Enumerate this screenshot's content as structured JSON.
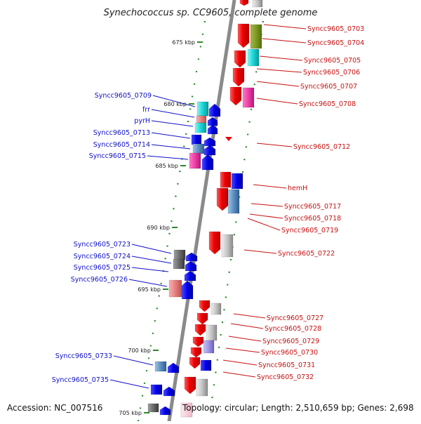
{
  "title": "Synechococcus sp. CC9605, complete genome",
  "footer": {
    "accession": "Accession: NC_007516",
    "summary": "Topology: circular; Length: 2,510,659 bp; Genes: 2,698"
  },
  "ticks": [
    "675 kbp",
    "680 kbp",
    "685 kbp",
    "690 kbp",
    "695 kbp",
    "700 kbp",
    "705 kbp"
  ],
  "labels_left": [
    "Syncc9605_0709",
    "frr",
    "pyrH",
    "Syncc9605_0713",
    "Syncc9605_0714",
    "Syncc9605_0715",
    "Syncc9605_0723",
    "Syncc9605_0724",
    "Syncc9605_0725",
    "Syncc9605_0726",
    "Syncc9605_0733",
    "Syncc9605_0735"
  ],
  "labels_right": [
    "Syncc9605_0703",
    "Syncc9605_0704",
    "Syncc9605_0705",
    "Syncc9605_0706",
    "Syncc9605_0707",
    "Syncc9605_0708",
    "Syncc9605_0712",
    "hemH",
    "Syncc9605_0717",
    "Syncc9605_0718",
    "Syncc9605_0719",
    "Syncc9605_0722",
    "Syncc9605_0727",
    "Syncc9605_0728",
    "Syncc9605_0729",
    "Syncc9605_0730",
    "Syncc9605_0731",
    "Syncc9605_0732"
  ],
  "colors": {
    "forward_strand": "#1010c8",
    "reverse_strand": "#c81010",
    "backbone": "#888888",
    "tick": "#2a8a2a"
  }
}
